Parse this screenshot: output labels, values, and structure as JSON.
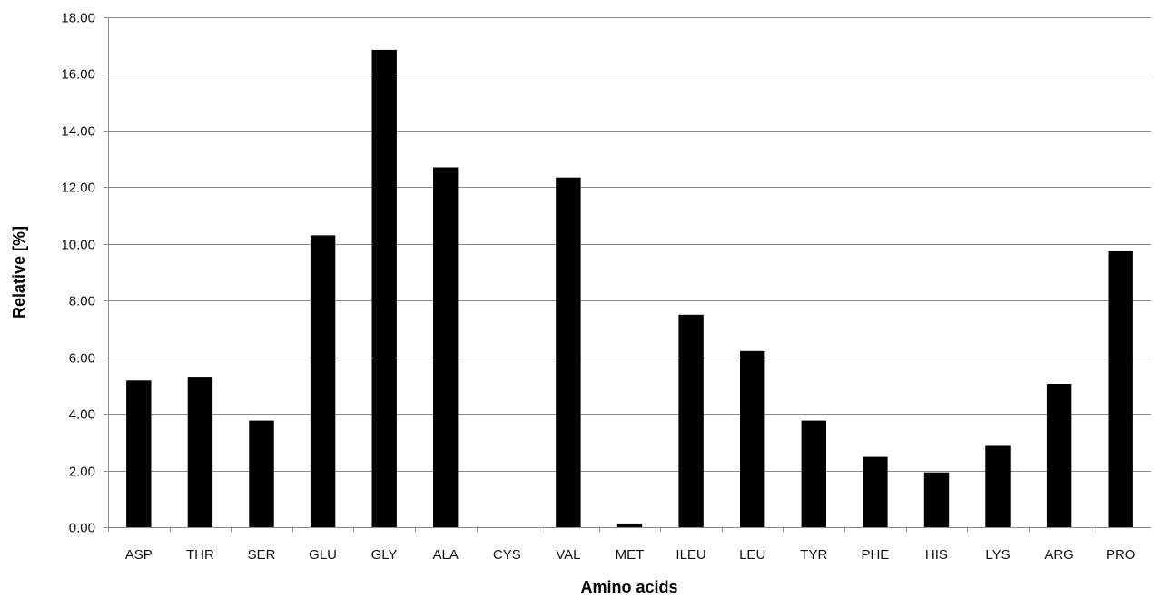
{
  "chart_data": {
    "type": "bar",
    "xlabel": "Amino acids",
    "ylabel": "Relative [%]",
    "categories": [
      "ASP",
      "THR",
      "SER",
      "GLU",
      "GLY",
      "ALA",
      "CYS",
      "VAL",
      "MET",
      "ILEU",
      "LEU",
      "TYR",
      "PHE",
      "HIS",
      "LYS",
      "ARG",
      "PRO"
    ],
    "values": [
      5.18,
      5.28,
      3.76,
      10.3,
      16.85,
      12.7,
      0.0,
      12.34,
      0.13,
      7.5,
      6.22,
      3.76,
      2.48,
      1.93,
      2.9,
      5.06,
      9.74
    ],
    "ylim": [
      0,
      18
    ],
    "yticks": [
      "0.00",
      "2.00",
      "4.00",
      "6.00",
      "8.00",
      "10.00",
      "12.00",
      "14.00",
      "16.00",
      "18.00"
    ],
    "grid": true,
    "legend": "none",
    "colors": {
      "bar": "#000000",
      "grid": "#8c8c8c",
      "axis": "#8c8c8c"
    }
  }
}
